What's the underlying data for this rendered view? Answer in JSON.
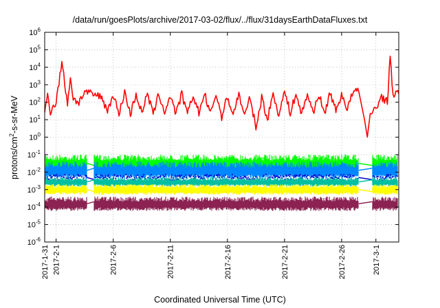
{
  "chart_data": {
    "type": "line",
    "title": "/data/run/goesPlots/archive/2017-03-02/flux/../flux/31daysEarthDataFluxes.txt",
    "xlabel": "Coordinated Universal Time (UTC)",
    "ylabel_main": "protons/cm",
    "ylabel_sup": "2",
    "ylabel_tail": "-s-sr-MeV",
    "y_scale": "log",
    "ylim_exp": [
      -6,
      6
    ],
    "y_ticks": [
      {
        "base": "10",
        "exp": "-6",
        "e": -6
      },
      {
        "base": "10",
        "exp": "-5",
        "e": -5
      },
      {
        "base": "10",
        "exp": "-4",
        "e": -4
      },
      {
        "base": "10",
        "exp": "-3",
        "e": -3
      },
      {
        "base": "10",
        "exp": "-2",
        "e": -2
      },
      {
        "base": "10",
        "exp": "-1",
        "e": -1
      },
      {
        "base": "10",
        "exp": "0",
        "e": 0
      },
      {
        "base": "10",
        "exp": "1",
        "e": 1
      },
      {
        "base": "10",
        "exp": "2",
        "e": 2
      },
      {
        "base": "10",
        "exp": "3",
        "e": 3
      },
      {
        "base": "10",
        "exp": "4",
        "e": 4
      },
      {
        "base": "10",
        "exp": "5",
        "e": 5
      },
      {
        "base": "10",
        "exp": "6",
        "e": 6
      }
    ],
    "x_axis": {
      "type": "date",
      "start": "2017-01-31",
      "end": "2017-03-03"
    },
    "x_ticks": [
      {
        "label": "2017-1-31",
        "date": "2017-01-31"
      },
      {
        "label": "2017-2-1",
        "date": "2017-02-01"
      },
      {
        "label": "2017-2-6",
        "date": "2017-02-06"
      },
      {
        "label": "2017-2-11",
        "date": "2017-02-11"
      },
      {
        "label": "2017-2-16",
        "date": "2017-02-16"
      },
      {
        "label": "2017-2-21",
        "date": "2017-02-21"
      },
      {
        "label": "2017-2-26",
        "date": "2017-02-26"
      },
      {
        "label": "2017-3-1",
        "date": "2017-03-01"
      }
    ],
    "grid": true,
    "data_gaps": [
      {
        "start": "2017-02-03T17:00",
        "end": "2017-02-04T08:00"
      },
      {
        "start": "2017-02-27T12:00",
        "end": "2017-02-28T16:00"
      }
    ],
    "series": [
      {
        "color": "#ff0000",
        "style": "line",
        "x": [
          "2017-01-31T00:00",
          "2017-01-31T06:00",
          "2017-01-31T12:00",
          "2017-01-31T18:00",
          "2017-02-01T00:00",
          "2017-02-01T12:00",
          "2017-02-02T00:00",
          "2017-02-02T06:00",
          "2017-02-02T12:00",
          "2017-02-03T00:00",
          "2017-02-03T12:00",
          "2017-02-04T00:00",
          "2017-02-04T12:00",
          "2017-02-05T00:00",
          "2017-02-05T12:00",
          "2017-02-06T00:00",
          "2017-02-06T12:00",
          "2017-02-07T00:00",
          "2017-02-07T12:00",
          "2017-02-08T00:00",
          "2017-02-08T12:00",
          "2017-02-09T00:00",
          "2017-02-09T12:00",
          "2017-02-10T00:00",
          "2017-02-10T12:00",
          "2017-02-11T00:00",
          "2017-02-11T12:00",
          "2017-02-12T00:00",
          "2017-02-12T12:00",
          "2017-02-13T00:00",
          "2017-02-13T12:00",
          "2017-02-14T00:00",
          "2017-02-14T12:00",
          "2017-02-15T00:00",
          "2017-02-15T12:00",
          "2017-02-16T00:00",
          "2017-02-16T12:00",
          "2017-02-17T00:00",
          "2017-02-17T12:00",
          "2017-02-18T00:00",
          "2017-02-18T12:00",
          "2017-02-19T00:00",
          "2017-02-19T12:00",
          "2017-02-20T00:00",
          "2017-02-20T12:00",
          "2017-02-21T00:00",
          "2017-02-21T12:00",
          "2017-02-22T00:00",
          "2017-02-22T12:00",
          "2017-02-23T00:00",
          "2017-02-23T12:00",
          "2017-02-24T00:00",
          "2017-02-24T12:00",
          "2017-02-25T00:00",
          "2017-02-25T12:00",
          "2017-02-26T00:00",
          "2017-02-26T12:00",
          "2017-02-27T00:00",
          "2017-02-27T12:00",
          "2017-02-28T00:00",
          "2017-02-28T06:00",
          "2017-02-28T12:00",
          "2017-03-01T00:00",
          "2017-03-01T12:00",
          "2017-03-02T00:00",
          "2017-03-02T06:00",
          "2017-03-02T12:00",
          "2017-03-03T00:00"
        ],
        "y": [
          20,
          300,
          30,
          60,
          100,
          20000,
          80,
          3000,
          150,
          100,
          400,
          300,
          250,
          200,
          30,
          300,
          20,
          400,
          20,
          300,
          25,
          300,
          20,
          300,
          25,
          250,
          20,
          300,
          20,
          250,
          25,
          300,
          20,
          300,
          15,
          200,
          20,
          300,
          15,
          200,
          3,
          200,
          10,
          300,
          20,
          400,
          25,
          300,
          20,
          300,
          25,
          300,
          20,
          400,
          30,
          300,
          40,
          400,
          400,
          10,
          1,
          20,
          50,
          200,
          100,
          40000,
          300,
          300
        ]
      },
      {
        "color": "#00ff00",
        "style": "band",
        "low": 0.01,
        "high": 0.1
      },
      {
        "color": "#0088ff",
        "style": "band",
        "low": 0.004,
        "high": 0.04
      },
      {
        "color": "#0000cc",
        "style": "line",
        "low": 0.003,
        "high": 0.008
      },
      {
        "color": "#00c0a0",
        "style": "band",
        "low": 0.0015,
        "high": 0.005
      },
      {
        "color": "#ffff00",
        "style": "band",
        "low": 0.0005,
        "high": 0.002
      },
      {
        "color": "#8b2252",
        "style": "band",
        "low": 6e-05,
        "high": 0.0004
      }
    ]
  }
}
